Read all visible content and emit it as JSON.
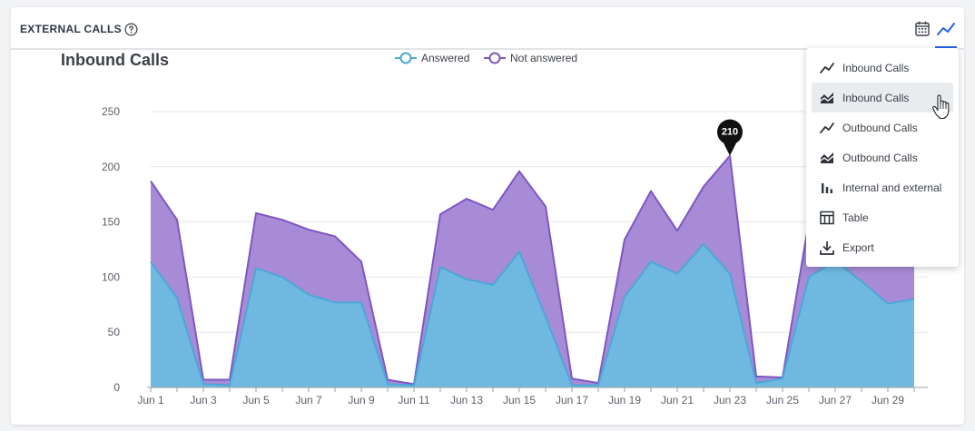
{
  "header": {
    "title": "EXTERNAL CALLS",
    "help_icon": "help-circle-icon",
    "calendar_icon": "calendar-icon",
    "chart_type_icon": "line-chart-icon"
  },
  "menu": {
    "items": [
      {
        "label": "Inbound Calls",
        "icon": "line-chart-icon"
      },
      {
        "label": "Inbound Calls",
        "icon": "area-chart-icon",
        "hovered": true
      },
      {
        "label": "Outbound Calls",
        "icon": "line-chart-icon"
      },
      {
        "label": "Outbound Calls",
        "icon": "area-chart-icon"
      },
      {
        "label": "Internal and external",
        "icon": "bar-chart-icon"
      },
      {
        "label": "Table",
        "icon": "table-icon"
      },
      {
        "label": "Export",
        "icon": "download-icon"
      }
    ]
  },
  "colors": {
    "answered": "#4aa8d8",
    "answered_fill": "#6fb9e0",
    "not_answered": "#7e57c2",
    "not_answered_fill": "#a78bd7",
    "grid": "#e5e7eb",
    "axis_text": "#5b6068"
  },
  "chart_data": {
    "type": "area",
    "stacked": true,
    "title": "Inbound Calls",
    "x": [
      "Jun 1",
      "Jun 2",
      "Jun 3",
      "Jun 4",
      "Jun 5",
      "Jun 6",
      "Jun 7",
      "Jun 8",
      "Jun 9",
      "Jun 10",
      "Jun 11",
      "Jun 12",
      "Jun 13",
      "Jun 14",
      "Jun 15",
      "Jun 16",
      "Jun 17",
      "Jun 18",
      "Jun 19",
      "Jun 20",
      "Jun 21",
      "Jun 22",
      "Jun 23",
      "Jun 24",
      "Jun 25",
      "Jun 26",
      "Jun 27",
      "Jun 28",
      "Jun 29",
      "Jun 30"
    ],
    "x_tick_labels": [
      "Jun 1",
      "Jun 3",
      "Jun 5",
      "Jun 7",
      "Jun 9",
      "Jun 11",
      "Jun 13",
      "Jun 15",
      "Jun 17",
      "Jun 19",
      "Jun 21",
      "Jun 23",
      "Jun 25",
      "Jun 27",
      "Jun 29"
    ],
    "series": [
      {
        "name": "Answered",
        "values": [
          114,
          81,
          3,
          2,
          108,
          100,
          84,
          77,
          77,
          3,
          2,
          109,
          98,
          93,
          123,
          64,
          2,
          2,
          82,
          114,
          103,
          130,
          103,
          4,
          8,
          100,
          115,
          96,
          76,
          80
        ]
      },
      {
        "name": "Not answered",
        "values": [
          73,
          71,
          4,
          5,
          50,
          52,
          59,
          60,
          37,
          4,
          1,
          48,
          73,
          68,
          73,
          100,
          6,
          2,
          52,
          64,
          39,
          52,
          107,
          6,
          1,
          50,
          65,
          55,
          48,
          53
        ]
      }
    ],
    "ylim": [
      0,
      250
    ],
    "y_ticks": [
      0,
      50,
      100,
      150,
      200,
      250
    ],
    "grid": true,
    "legend_position": "top-center",
    "tooltip": {
      "index": 22,
      "value": "210"
    }
  }
}
